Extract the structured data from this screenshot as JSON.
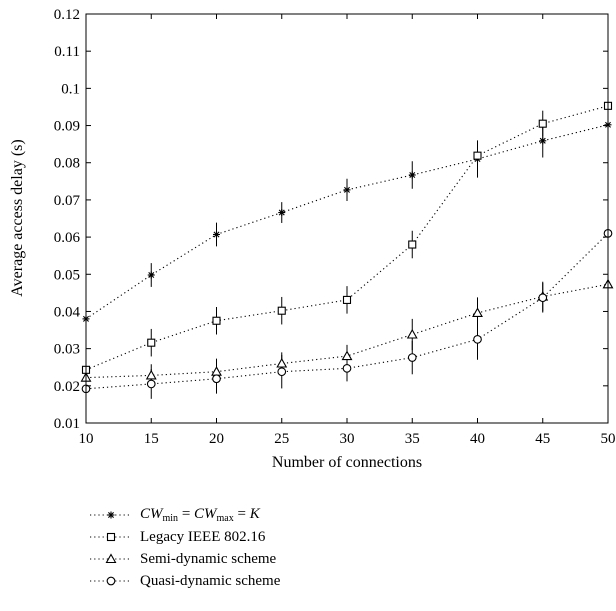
{
  "chart_data": {
    "type": "line",
    "xlabel": "Number of connections",
    "ylabel": "Average access delay (s)",
    "xlim": [
      10,
      50
    ],
    "ylim": [
      0.01,
      0.12
    ],
    "x": [
      10,
      15,
      20,
      25,
      30,
      35,
      40,
      45,
      50
    ],
    "xticks": [
      "10",
      "15",
      "20",
      "25",
      "30",
      "35",
      "40",
      "45",
      "50"
    ],
    "yticks": [
      "0.01",
      "0.02",
      "0.03",
      "0.04",
      "0.05",
      "0.06",
      "0.07",
      "0.08",
      "0.09",
      "0.1",
      "0.11",
      "0.12"
    ],
    "grid": false,
    "legend_position": "below plot",
    "series": [
      {
        "name": "CWmin = CWmax = K",
        "marker": "star",
        "values": [
          0.038,
          0.0498,
          0.0607,
          0.0666,
          0.0727,
          0.0767,
          0.081,
          0.0859,
          0.0902
        ],
        "err": [
          0.0015,
          0.0032,
          0.0032,
          0.0028,
          0.003,
          0.0037,
          0.005,
          0.0045,
          0
        ]
      },
      {
        "name": "Legacy IEEE 802.16",
        "marker": "square",
        "values": [
          0.0243,
          0.0316,
          0.0375,
          0.0402,
          0.0431,
          0.058,
          0.0819,
          0.0905,
          0.0953
        ],
        "err": [
          0.002,
          0.0037,
          0.0037,
          0.0037,
          0.0037,
          0.0037,
          0.004,
          0.0035,
          0
        ]
      },
      {
        "name": "Semi-dynamic scheme",
        "marker": "triangle",
        "values": [
          0.0222,
          0.0228,
          0.0238,
          0.026,
          0.028,
          0.0338,
          0.0396,
          0.044,
          0.0473
        ],
        "err": [
          0.002,
          0.003,
          0.0035,
          0.003,
          0.003,
          0.0042,
          0.0042,
          0.004,
          0
        ]
      },
      {
        "name": "Quasi-dynamic scheme",
        "marker": "circle",
        "values": [
          0.0192,
          0.0205,
          0.0219,
          0.0238,
          0.0247,
          0.0276,
          0.0325,
          0.0437,
          0.061
        ],
        "err": [
          0.0015,
          0.004,
          0.004,
          0.0045,
          0.0035,
          0.0045,
          0.0055,
          0.004,
          0
        ]
      }
    ]
  },
  "legend": {
    "cw": {
      "a": "CW",
      "min": "min",
      "eq1": " = ",
      "b": "CW",
      "max": "max",
      "eq2": " = ",
      "k": "K"
    },
    "legacy": "Legacy IEEE 802.16",
    "semi": "Semi-dynamic scheme",
    "quasi": "Quasi-dynamic scheme"
  }
}
